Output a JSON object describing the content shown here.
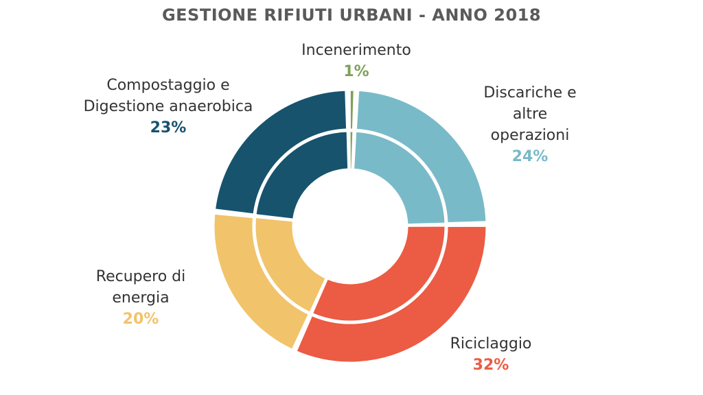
{
  "chart_data": {
    "type": "pie",
    "variant": "double-donut",
    "title": "GESTIONE RIFIUTI URBANI - ANNO 2018",
    "start_angle_deg": -1,
    "direction": "clockwise",
    "slices": [
      {
        "key": "incenerimento",
        "label": "Incenerimento",
        "value": 1,
        "value_label": "1%",
        "color": "#7fa15a"
      },
      {
        "key": "discariche",
        "label": "Discariche e\naltre\noperazioni",
        "value": 24,
        "value_label": "24%",
        "color": "#79bac8"
      },
      {
        "key": "riciclaggio",
        "label": "Riciclaggio",
        "value": 32,
        "value_label": "32%",
        "color": "#ec5b43"
      },
      {
        "key": "recupero",
        "label": "Recupero di\nenergia",
        "value": 20,
        "value_label": "20%",
        "color": "#f1c36a"
      },
      {
        "key": "compostaggio",
        "label": "Compostaggio e\nDigestione anaerobica",
        "value": 23,
        "value_label": "23%",
        "color": "#17536d"
      }
    ]
  }
}
